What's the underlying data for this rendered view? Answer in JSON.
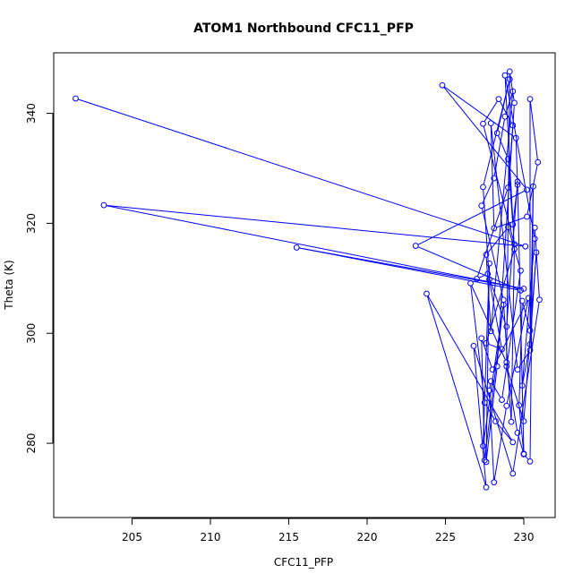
{
  "chart_data": {
    "type": "scatter",
    "title": "ATOM1 Northbound CFC11_PFP",
    "xlabel": "CFC11_PFP",
    "ylabel": "Theta (K)",
    "xlim": [
      200.0,
      232.0
    ],
    "ylim": [
      266.5,
      351.0
    ],
    "xticks": [
      205,
      210,
      215,
      220,
      225,
      230
    ],
    "yticks": [
      280,
      300,
      320,
      340
    ],
    "grid": false,
    "point_style": "open-circle",
    "line_connected": true,
    "colors": {
      "series": "#0000ff",
      "axis": "#000000",
      "background": "#ffffff"
    },
    "series": [
      {
        "points": [
          [
            201.4,
            342.7
          ],
          [
            230.1,
            315.8
          ],
          [
            203.2,
            323.3
          ],
          [
            230.0,
            308.1
          ],
          [
            215.5,
            315.6
          ],
          [
            229.8,
            307.8
          ],
          [
            223.1,
            315.9
          ],
          [
            230.2,
            326.1
          ],
          [
            224.8,
            345.1
          ],
          [
            229.5,
            335.5
          ],
          [
            229.6,
            327.0
          ],
          [
            229.3,
            319.8
          ],
          [
            229.0,
            331.7
          ],
          [
            228.3,
            336.4
          ],
          [
            229.1,
            346.2
          ],
          [
            227.4,
            326.6
          ],
          [
            227.8,
            309.8
          ],
          [
            228.6,
            297.1
          ],
          [
            227.6,
            298.2
          ],
          [
            229.4,
            315.3
          ],
          [
            228.8,
            346.9
          ],
          [
            230.7,
            317.2
          ],
          [
            229.9,
            290.5
          ],
          [
            230.4,
            298.0
          ],
          [
            230.8,
            314.7
          ],
          [
            230.0,
            284.0
          ],
          [
            228.9,
            294.0
          ],
          [
            229.6,
            281.9
          ],
          [
            230.0,
            278.0
          ],
          [
            230.4,
            276.7
          ],
          [
            230.6,
            326.7
          ],
          [
            230.4,
            296.9
          ],
          [
            229.6,
            293.4
          ],
          [
            227.9,
            338.2
          ],
          [
            228.1,
            319.1
          ],
          [
            230.2,
            321.2
          ],
          [
            230.9,
            331.1
          ],
          [
            230.4,
            342.6
          ],
          [
            230.4,
            300.5
          ],
          [
            229.9,
            305.9
          ],
          [
            229.7,
            286.9
          ],
          [
            230.0,
            278.1
          ],
          [
            229.6,
            327.6
          ],
          [
            228.9,
            301.2
          ],
          [
            227.7,
            310.8
          ],
          [
            227.0,
            309.9
          ],
          [
            229.0,
            326.5
          ],
          [
            229.3,
            337.8
          ],
          [
            228.4,
            342.6
          ],
          [
            227.4,
            338.1
          ],
          [
            229.4,
            316.2
          ],
          [
            229.2,
            283.9
          ],
          [
            228.7,
            306.1
          ],
          [
            227.3,
            323.2
          ],
          [
            228.1,
            328.2
          ],
          [
            228.8,
            339.4
          ],
          [
            229.3,
            344.0
          ],
          [
            227.9,
            300.4
          ],
          [
            227.6,
            314.3
          ],
          [
            229.0,
            319.3
          ],
          [
            229.8,
            311.4
          ],
          [
            228.6,
            287.9
          ],
          [
            227.9,
            291.3
          ],
          [
            227.8,
            289.6
          ],
          [
            228.1,
            272.9
          ],
          [
            228.9,
            286.8
          ],
          [
            230.3,
            306.4
          ],
          [
            228.0,
            293.4
          ],
          [
            227.3,
            299.1
          ],
          [
            227.5,
            276.9
          ],
          [
            228.7,
            305.2
          ],
          [
            227.4,
            279.5
          ],
          [
            227.8,
            312.7
          ],
          [
            227.6,
            276.6
          ],
          [
            228.3,
            294.0
          ],
          [
            229.4,
            341.9
          ],
          [
            229.1,
            347.6
          ],
          [
            228.9,
            294.7
          ],
          [
            226.6,
            309.1
          ],
          [
            227.5,
            287.4
          ],
          [
            228.2,
            284.0
          ],
          [
            229.3,
            280.2
          ],
          [
            223.8,
            307.2
          ],
          [
            227.6,
            272.0
          ],
          [
            226.8,
            297.7
          ],
          [
            229.3,
            274.5
          ],
          [
            231.0,
            306.1
          ],
          [
            230.7,
            319.2
          ]
        ]
      }
    ]
  }
}
